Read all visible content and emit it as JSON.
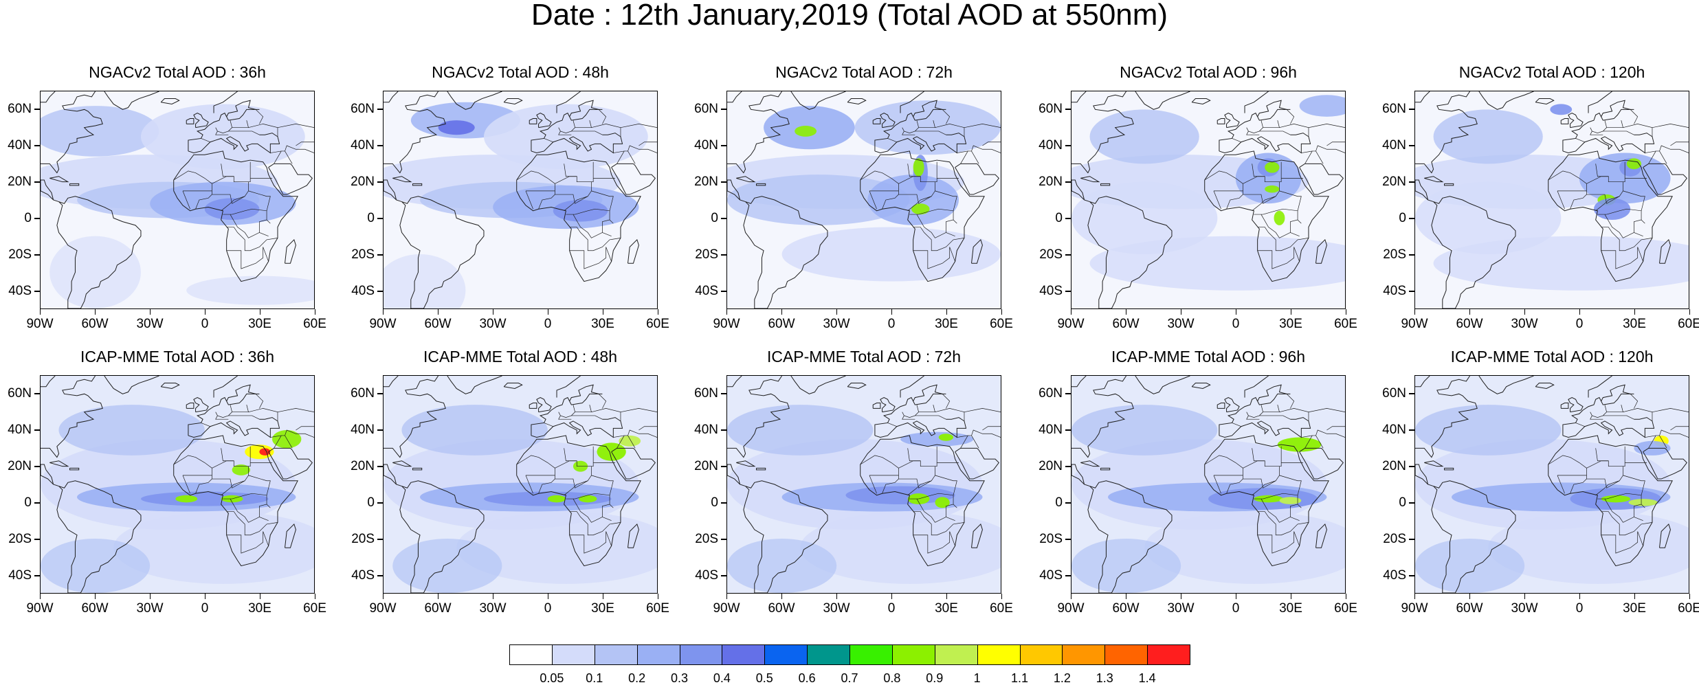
{
  "title": "Date : 12th January,2019 (Total AOD at 550nm)",
  "panels": [
    {
      "title": "NGACv2 Total AOD : 36h"
    },
    {
      "title": "NGACv2 Total AOD : 48h"
    },
    {
      "title": "NGACv2 Total AOD : 72h"
    },
    {
      "title": "NGACv2 Total AOD : 96h"
    },
    {
      "title": "NGACv2 Total AOD : 120h"
    },
    {
      "title": "ICAP-MME Total AOD : 36h"
    },
    {
      "title": "ICAP-MME Total AOD : 48h"
    },
    {
      "title": "ICAP-MME Total AOD : 72h"
    },
    {
      "title": "ICAP-MME Total AOD : 96h"
    },
    {
      "title": "ICAP-MME Total AOD : 120h"
    }
  ],
  "lat_ticks": [
    "60N",
    "40N",
    "20N",
    "0",
    "20S",
    "40S"
  ],
  "lon_ticks": [
    "90W",
    "60W",
    "30W",
    "0",
    "30E",
    "60E"
  ],
  "colorbar": {
    "labels": [
      "0.05",
      "0.1",
      "0.2",
      "0.3",
      "0.4",
      "0.5",
      "0.6",
      "0.7",
      "0.8",
      "0.9",
      "1",
      "1.1",
      "1.2",
      "1.3",
      "1.4"
    ],
    "colors": [
      "#ffffff",
      "#d4dcfa",
      "#b4c4f5",
      "#9ab0f4",
      "#7e94ee",
      "#6470e8",
      "#0a64f0",
      "#00968c",
      "#38f000",
      "#8cf000",
      "#c0f050",
      "#ffff00",
      "#ffc800",
      "#ff9600",
      "#ff6400",
      "#ff1e1e"
    ]
  },
  "map_domain": {
    "lon_range": [
      -90,
      60
    ],
    "lat_range": [
      -50,
      70
    ]
  },
  "colors": {
    "land_outline": "#1e1e1e",
    "background": "#ffffff"
  }
}
